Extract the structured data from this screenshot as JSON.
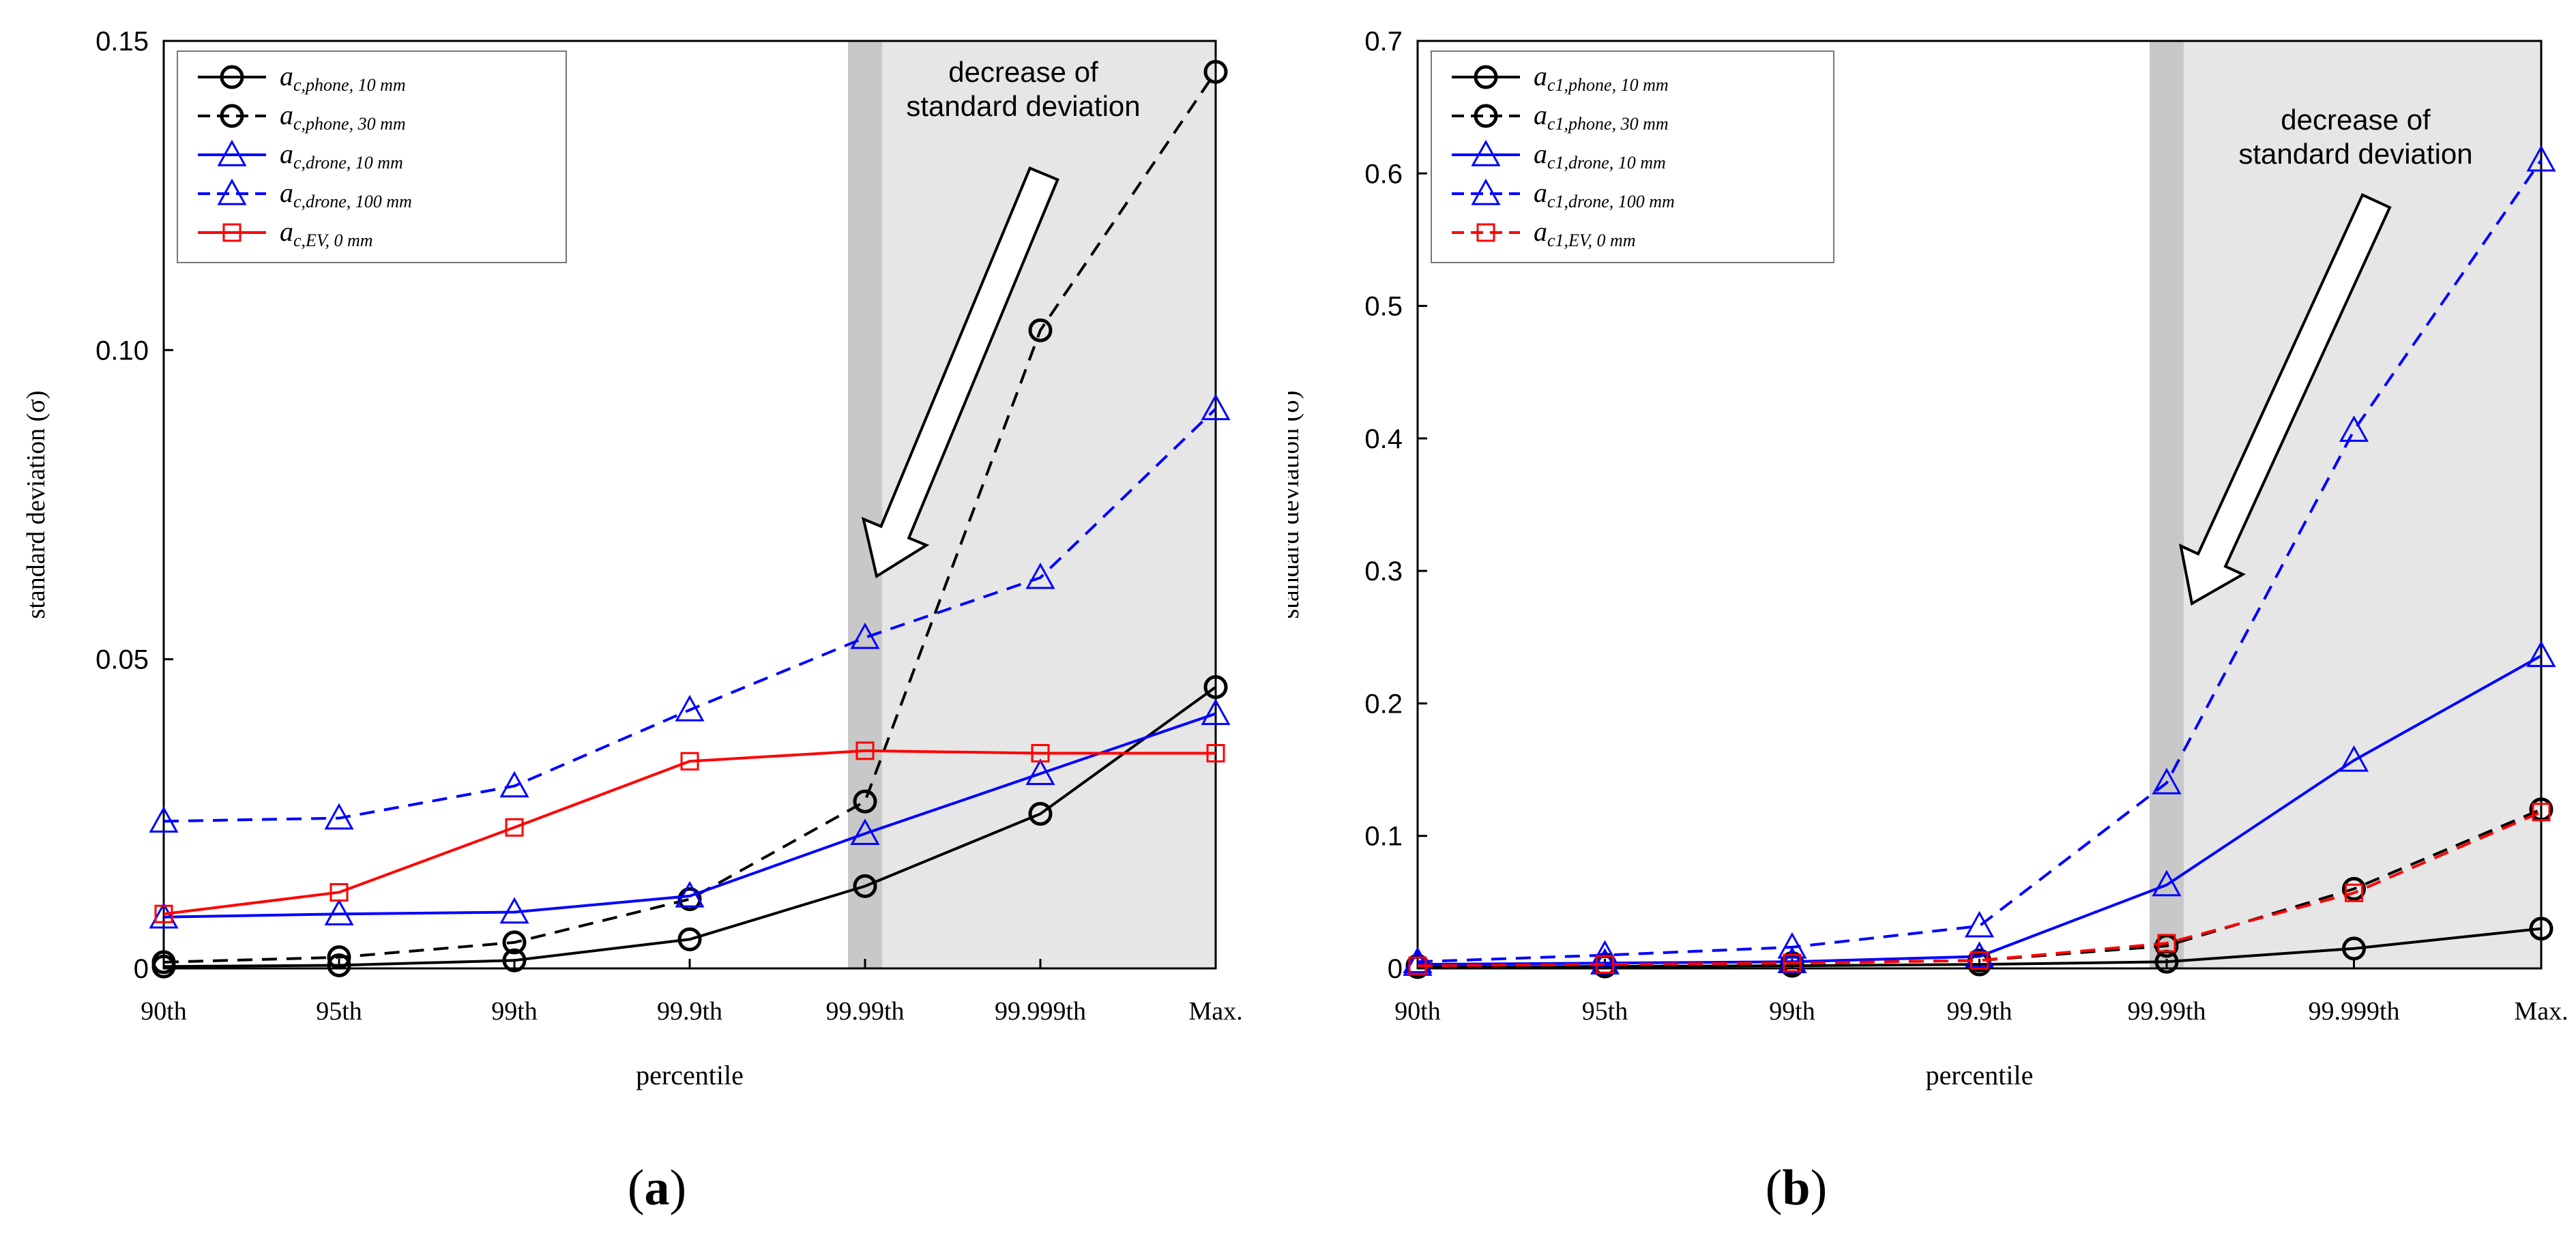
{
  "charts": [
    {
      "panel_label": "a",
      "chart_data": {
        "type": "line",
        "xlabel": "percentile",
        "ylabel": "standard deviation (σ)",
        "categories": [
          "90th",
          "95th",
          "99th",
          "99.9th",
          "99.99th",
          "99.999th",
          "Max."
        ],
        "ylim": [
          0,
          0.15
        ],
        "yticks": [
          0,
          0.05,
          0.1,
          0.15
        ],
        "ytick_labels": [
          "0",
          "0.05",
          "0.10",
          "0.15"
        ],
        "grid": false,
        "legend_position": "top-left",
        "shaded_region": {
          "from_category": "99.99th",
          "to_category": "Max.",
          "color": "#e6e6e6",
          "band_color": "#c8c8c8"
        },
        "annotation": {
          "lines": [
            "decrease of",
            "standard deviation"
          ]
        },
        "series": [
          {
            "name": "a",
            "sub": "c,phone, 10 mm",
            "color": "#000000",
            "dash": "solid",
            "marker": "circle",
            "values": [
              0.0003,
              0.0005,
              0.0013,
              0.0047,
              0.0133,
              0.025,
              0.0455
            ]
          },
          {
            "name": "a",
            "sub": "c,phone, 30 mm",
            "color": "#000000",
            "dash": "dashed",
            "marker": "circle",
            "values": [
              0.001,
              0.0018,
              0.0042,
              0.0112,
              0.027,
              0.1032,
              0.145
            ]
          },
          {
            "name": "a",
            "sub": "c,drone, 10 mm",
            "color": "#0000ff",
            "dash": "solid",
            "marker": "triangle",
            "values": [
              0.0083,
              0.0088,
              0.0091,
              0.0117,
              0.0218,
              0.0315,
              0.0412
            ]
          },
          {
            "name": "a",
            "sub": "c,drone, 100 mm",
            "color": "#0000ff",
            "dash": "dashed",
            "marker": "triangle",
            "values": [
              0.0238,
              0.0243,
              0.0295,
              0.0418,
              0.0535,
              0.0632,
              0.0905
            ]
          },
          {
            "name": "a",
            "sub": "c,EV, 0 mm",
            "color": "#ff0000",
            "dash": "solid",
            "marker": "square",
            "values": [
              0.0088,
              0.0123,
              0.0228,
              0.0335,
              0.0352,
              0.0348,
              0.0348
            ]
          }
        ]
      }
    },
    {
      "panel_label": "b",
      "chart_data": {
        "type": "line",
        "xlabel": "percentile",
        "ylabel": "standard deviation (σ)",
        "categories": [
          "90th",
          "95th",
          "99th",
          "99.9th",
          "99.99th",
          "99.999th",
          "Max."
        ],
        "ylim": [
          0,
          0.7
        ],
        "yticks": [
          0,
          0.1,
          0.2,
          0.3,
          0.4,
          0.5,
          0.6,
          0.7
        ],
        "ytick_labels": [
          "0",
          "0.1",
          "0.2",
          "0.3",
          "0.4",
          "0.5",
          "0.6",
          "0.7"
        ],
        "grid": false,
        "legend_position": "top-left",
        "shaded_region": {
          "from_category": "99.99th",
          "to_category": "Max.",
          "color": "#e6e6e6",
          "band_color": "#c8c8c8"
        },
        "annotation": {
          "lines": [
            "decrease of",
            "standard deviation"
          ]
        },
        "series": [
          {
            "name": "a",
            "sub": "c1,phone, 10 mm",
            "color": "#000000",
            "dash": "solid",
            "marker": "circle",
            "values": [
              0.001,
              0.0015,
              0.002,
              0.003,
              0.005,
              0.015,
              0.03
            ]
          },
          {
            "name": "a",
            "sub": "c1,phone, 30 mm",
            "color": "#000000",
            "dash": "dashed",
            "marker": "circle",
            "values": [
              0.002,
              0.003,
              0.004,
              0.006,
              0.017,
              0.06,
              0.12
            ]
          },
          {
            "name": "a",
            "sub": "c1,drone, 10 mm",
            "color": "#0000ff",
            "dash": "solid",
            "marker": "triangle",
            "values": [
              0.003,
              0.004,
              0.005,
              0.009,
              0.063,
              0.157,
              0.236
            ]
          },
          {
            "name": "a",
            "sub": "c1,drone, 100 mm",
            "color": "#0000ff",
            "dash": "dashed",
            "marker": "triangle",
            "values": [
              0.005,
              0.01,
              0.016,
              0.032,
              0.14,
              0.406,
              0.61
            ]
          },
          {
            "name": "a",
            "sub": "c1,EV, 0 mm",
            "color": "#ff0000",
            "dash": "dashed",
            "marker": "square",
            "values": [
              0.002,
              0.003,
              0.004,
              0.006,
              0.019,
              0.057,
              0.118
            ]
          }
        ]
      }
    }
  ]
}
